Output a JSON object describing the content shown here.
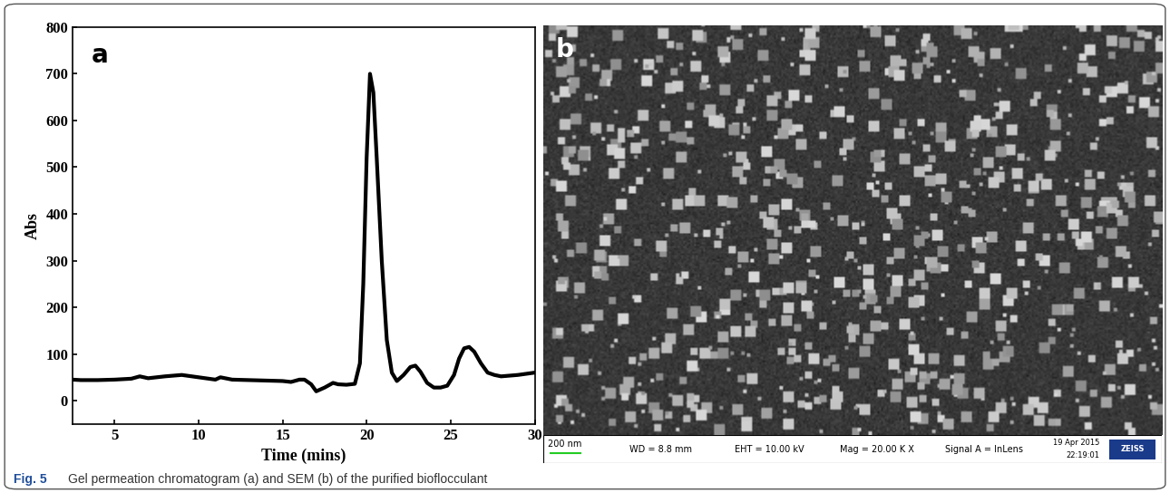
{
  "chart_data": {
    "type": "line",
    "panel_label": "a",
    "x": [
      2.5,
      3,
      4,
      5,
      6,
      6.5,
      7,
      8,
      9,
      10,
      11,
      11.3,
      12,
      13,
      14,
      15,
      15.5,
      16,
      16.3,
      16.7,
      17,
      17.5,
      18,
      18.3,
      18.8,
      19.3,
      19.6,
      19.8,
      20.0,
      20.2,
      20.4,
      20.6,
      20.9,
      21.2,
      21.5,
      21.8,
      22.2,
      22.6,
      22.9,
      23.2,
      23.6,
      24.0,
      24.4,
      24.8,
      25.2,
      25.5,
      25.8,
      26.1,
      26.4,
      26.8,
      27.2,
      27.6,
      28,
      29,
      30
    ],
    "values": [
      45,
      44,
      44,
      45,
      47,
      52,
      48,
      52,
      55,
      50,
      45,
      50,
      45,
      44,
      43,
      42,
      40,
      45,
      45,
      35,
      20,
      28,
      38,
      35,
      34,
      36,
      80,
      250,
      520,
      700,
      660,
      520,
      300,
      130,
      60,
      42,
      55,
      72,
      75,
      62,
      38,
      28,
      28,
      32,
      55,
      90,
      112,
      115,
      105,
      80,
      60,
      55,
      52,
      55,
      60
    ],
    "color": "#000000",
    "x_label": "Time (mins)",
    "y_label": "Abs",
    "xlim": [
      2.5,
      30
    ],
    "ylim": [
      -50,
      800
    ],
    "xticks": [
      5,
      10,
      15,
      20,
      25,
      30
    ],
    "yticks": [
      0,
      100,
      200,
      300,
      400,
      500,
      600,
      700,
      800
    ],
    "grid": false
  },
  "image_panel": {
    "panel_label": "b",
    "scale_bar": "200 nm",
    "info": [
      "WD = 8.8 mm",
      "EHT = 10.00 kV",
      "Mag = 20.00 K X",
      "Signal A = InLens"
    ],
    "date": "19 Apr 2015",
    "time": "22:19:01",
    "logo": "ZEISS"
  },
  "caption": {
    "label": "Fig. 5",
    "text": "Gel permeation chromatogram (a) and SEM (b) of the purified bioflocculant"
  }
}
